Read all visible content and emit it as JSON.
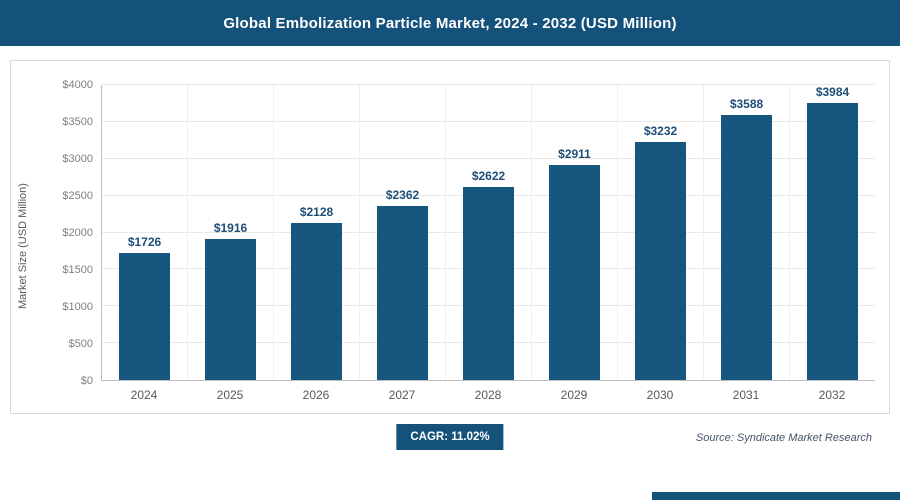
{
  "header": {
    "title": "Global Embolization Particle Market, 2024 - 2032 (USD Million)"
  },
  "chart_data": {
    "type": "bar",
    "title": "Global Embolization Particle Market, 2024 - 2032 (USD Million)",
    "categories": [
      "2024",
      "2025",
      "2026",
      "2027",
      "2028",
      "2029",
      "2030",
      "2031",
      "2032"
    ],
    "values": [
      1726,
      1916,
      2128,
      2362,
      2622,
      2911,
      3232,
      3588,
      3984
    ],
    "value_labels": [
      "$1726",
      "$1916",
      "$2128",
      "$2362",
      "$2622",
      "$2911",
      "$3232",
      "$3588",
      "$3984"
    ],
    "xlabel": "",
    "ylabel": "Market Size (USD Million)",
    "ylim": [
      0,
      4000
    ],
    "ytick_step": 500,
    "ytick_prefix": "$",
    "grid": "horizontal-and-vertical",
    "legend_position": "none",
    "bar_color": "#17567e"
  },
  "footer": {
    "cagr_label": "CAGR: 11.02%",
    "source": "Source: Syndicate Market Research"
  },
  "colors": {
    "accent": "#14517b",
    "bar": "#17567e",
    "value_label": "#1f4e79",
    "axis_text": "#7f7f7f"
  }
}
